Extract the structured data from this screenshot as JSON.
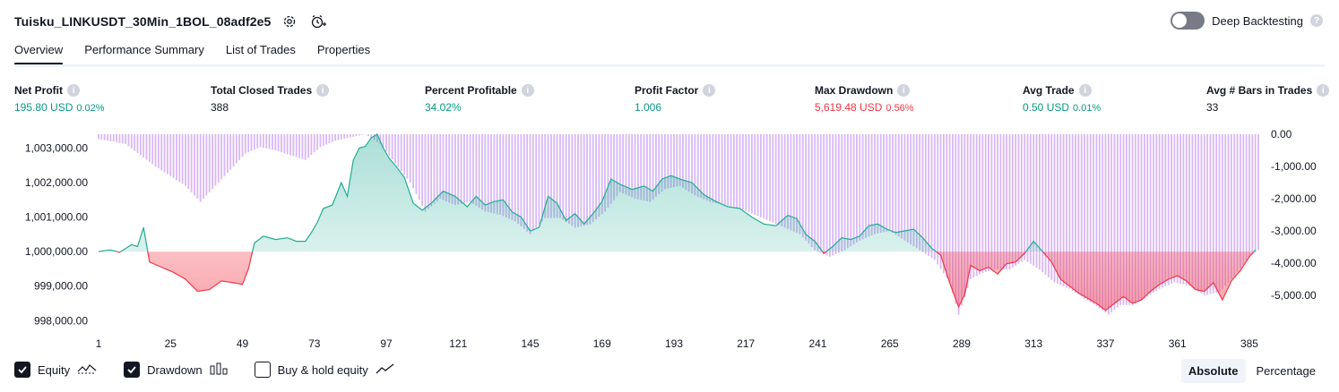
{
  "header": {
    "title": "Tuisku_LINKUSDT_30Min_1BOL_08adf2e5",
    "deep_backtesting_label": "Deep Backtesting",
    "deep_backtesting_enabled": false
  },
  "tabs": [
    {
      "label": "Overview",
      "active": true
    },
    {
      "label": "Performance Summary",
      "active": false
    },
    {
      "label": "List of Trades",
      "active": false
    },
    {
      "label": "Properties",
      "active": false
    }
  ],
  "metrics": [
    {
      "label": "Net Profit",
      "value": "195.80 USD",
      "pct": "0.02%",
      "color": "green"
    },
    {
      "label": "Total Closed Trades",
      "value": "388",
      "pct": "",
      "color": "dark"
    },
    {
      "label": "Percent Profitable",
      "value": "34.02%",
      "pct": "",
      "color": "green"
    },
    {
      "label": "Profit Factor",
      "value": "1.006",
      "pct": "",
      "color": "green"
    },
    {
      "label": "Max Drawdown",
      "value": "5,619.48 USD",
      "pct": "0.56%",
      "color": "red"
    },
    {
      "label": "Avg Trade",
      "value": "0.50 USD",
      "pct": "0.01%",
      "color": "green"
    },
    {
      "label": "Avg # Bars in Trades",
      "value": "33",
      "pct": "",
      "color": "dark"
    }
  ],
  "colors": {
    "profit": "#089981",
    "loss": "#f23645",
    "equity_line_up": "#22ab94",
    "equity_line_down": "#f23645",
    "drawdown_bars": "#d9b8f5",
    "text": "#131722"
  },
  "chart_data": {
    "type": "area",
    "baseline": 1000000,
    "x_ticks": [
      "1",
      "25",
      "49",
      "73",
      "97",
      "121",
      "145",
      "169",
      "193",
      "217",
      "241",
      "265",
      "289",
      "313",
      "337",
      "361",
      "385"
    ],
    "xlim": [
      1,
      388
    ],
    "left_axis": {
      "ticks": [
        "1,003,000.00",
        "1,002,000.00",
        "1,001,000.00",
        "1,000,000.00",
        "999,000.00",
        "998,000.00"
      ],
      "ylim": [
        997800,
        1003400
      ]
    },
    "right_axis": {
      "ticks": [
        "0.00",
        "-1,000.00",
        "-2,000.00",
        "-3,000.00",
        "-4,000.00",
        "-5,000.00"
      ],
      "ylim": [
        -6000,
        0
      ]
    },
    "series": [
      {
        "name": "Equity",
        "points": [
          [
            1,
            1000000
          ],
          [
            5,
            1000050
          ],
          [
            8,
            999980
          ],
          [
            12,
            1000200
          ],
          [
            14,
            1000150
          ],
          [
            16,
            1000700
          ],
          [
            18,
            999700
          ],
          [
            22,
            999550
          ],
          [
            26,
            999400
          ],
          [
            30,
            999200
          ],
          [
            34,
            998850
          ],
          [
            38,
            998900
          ],
          [
            42,
            999150
          ],
          [
            46,
            999100
          ],
          [
            49,
            999050
          ],
          [
            51,
            999500
          ],
          [
            53,
            1000250
          ],
          [
            56,
            1000450
          ],
          [
            60,
            1000350
          ],
          [
            64,
            1000400
          ],
          [
            67,
            1000300
          ],
          [
            70,
            1000300
          ],
          [
            72,
            1000550
          ],
          [
            74,
            1000850
          ],
          [
            76,
            1001250
          ],
          [
            79,
            1001350
          ],
          [
            82,
            1002000
          ],
          [
            84,
            1001600
          ],
          [
            86,
            1002650
          ],
          [
            88,
            1003000
          ],
          [
            90,
            1003050
          ],
          [
            92,
            1003300
          ],
          [
            94,
            1003400
          ],
          [
            96,
            1003000
          ],
          [
            98,
            1002700
          ],
          [
            100,
            1002500
          ],
          [
            103,
            1002150
          ],
          [
            106,
            1001400
          ],
          [
            109,
            1001200
          ],
          [
            112,
            1001400
          ],
          [
            116,
            1001750
          ],
          [
            120,
            1001600
          ],
          [
            124,
            1001300
          ],
          [
            127,
            1001600
          ],
          [
            130,
            1001350
          ],
          [
            133,
            1001450
          ],
          [
            136,
            1001500
          ],
          [
            139,
            1001150
          ],
          [
            142,
            1001000
          ],
          [
            145,
            1000600
          ],
          [
            148,
            1000700
          ],
          [
            151,
            1001600
          ],
          [
            154,
            1001400
          ],
          [
            157,
            1000900
          ],
          [
            160,
            1001100
          ],
          [
            163,
            1000800
          ],
          [
            166,
            1001100
          ],
          [
            169,
            1001450
          ],
          [
            172,
            1002100
          ],
          [
            175,
            1001950
          ],
          [
            179,
            1001800
          ],
          [
            183,
            1001900
          ],
          [
            186,
            1001750
          ],
          [
            189,
            1002100
          ],
          [
            192,
            1002200
          ],
          [
            195,
            1002100
          ],
          [
            199,
            1002000
          ],
          [
            203,
            1001650
          ],
          [
            207,
            1001450
          ],
          [
            211,
            1001300
          ],
          [
            215,
            1001250
          ],
          [
            219,
            1001000
          ],
          [
            223,
            1000800
          ],
          [
            227,
            1000750
          ],
          [
            231,
            1001050
          ],
          [
            234,
            1000950
          ],
          [
            237,
            1000500
          ],
          [
            240,
            1000300
          ],
          [
            243,
            999950
          ],
          [
            246,
            1000150
          ],
          [
            249,
            1000400
          ],
          [
            252,
            1000350
          ],
          [
            255,
            1000450
          ],
          [
            258,
            1000750
          ],
          [
            261,
            1000800
          ],
          [
            264,
            1000650
          ],
          [
            267,
            1000550
          ],
          [
            270,
            1000600
          ],
          [
            273,
            1000650
          ],
          [
            276,
            1000400
          ],
          [
            279,
            1000100
          ],
          [
            282,
            999900
          ],
          [
            285,
            999100
          ],
          [
            288,
            998400
          ],
          [
            290,
            998750
          ],
          [
            292,
            999600
          ],
          [
            295,
            999450
          ],
          [
            298,
            999550
          ],
          [
            301,
            999350
          ],
          [
            304,
            999650
          ],
          [
            307,
            999700
          ],
          [
            310,
            999950
          ],
          [
            313,
            1000300
          ],
          [
            316,
            1000000
          ],
          [
            319,
            999700
          ],
          [
            322,
            999200
          ],
          [
            325,
            999000
          ],
          [
            328,
            998800
          ],
          [
            331,
            998650
          ],
          [
            334,
            998500
          ],
          [
            337,
            998300
          ],
          [
            340,
            998500
          ],
          [
            343,
            998700
          ],
          [
            346,
            998500
          ],
          [
            349,
            998600
          ],
          [
            352,
            998850
          ],
          [
            355,
            999050
          ],
          [
            358,
            999200
          ],
          [
            361,
            999300
          ],
          [
            364,
            999150
          ],
          [
            367,
            998900
          ],
          [
            370,
            998850
          ],
          [
            373,
            999100
          ],
          [
            376,
            998600
          ],
          [
            379,
            999150
          ],
          [
            382,
            999450
          ],
          [
            385,
            999850
          ],
          [
            387,
            1000050
          ]
        ]
      },
      {
        "name": "Drawdown",
        "points": [
          [
            1,
            -150
          ],
          [
            10,
            -300
          ],
          [
            20,
            -1000
          ],
          [
            25,
            -1300
          ],
          [
            30,
            -1600
          ],
          [
            35,
            -2100
          ],
          [
            40,
            -1600
          ],
          [
            45,
            -1100
          ],
          [
            50,
            -600
          ],
          [
            55,
            -400
          ],
          [
            60,
            -500
          ],
          [
            65,
            -650
          ],
          [
            70,
            -800
          ],
          [
            75,
            -400
          ],
          [
            80,
            -200
          ],
          [
            85,
            -100
          ],
          [
            90,
            0
          ],
          [
            95,
            -300
          ],
          [
            100,
            -900
          ],
          [
            105,
            -1500
          ],
          [
            110,
            -2400
          ],
          [
            115,
            -2000
          ],
          [
            120,
            -2200
          ],
          [
            125,
            -2100
          ],
          [
            130,
            -2400
          ],
          [
            135,
            -2500
          ],
          [
            140,
            -2700
          ],
          [
            145,
            -3100
          ],
          [
            150,
            -2600
          ],
          [
            155,
            -2600
          ],
          [
            160,
            -2900
          ],
          [
            165,
            -2800
          ],
          [
            170,
            -2400
          ],
          [
            175,
            -1800
          ],
          [
            180,
            -2000
          ],
          [
            185,
            -2100
          ],
          [
            190,
            -1700
          ],
          [
            195,
            -1600
          ],
          [
            200,
            -1900
          ],
          [
            205,
            -2100
          ],
          [
            210,
            -2200
          ],
          [
            215,
            -2300
          ],
          [
            220,
            -2500
          ],
          [
            225,
            -2700
          ],
          [
            230,
            -2900
          ],
          [
            235,
            -3100
          ],
          [
            240,
            -3600
          ],
          [
            245,
            -3800
          ],
          [
            250,
            -3600
          ],
          [
            255,
            -3300
          ],
          [
            260,
            -3100
          ],
          [
            265,
            -3000
          ],
          [
            270,
            -3300
          ],
          [
            275,
            -3600
          ],
          [
            280,
            -3900
          ],
          [
            285,
            -4600
          ],
          [
            288,
            -5600
          ],
          [
            292,
            -4500
          ],
          [
            296,
            -4300
          ],
          [
            300,
            -4200
          ],
          [
            305,
            -4200
          ],
          [
            310,
            -3900
          ],
          [
            315,
            -4200
          ],
          [
            320,
            -4600
          ],
          [
            325,
            -4800
          ],
          [
            330,
            -5100
          ],
          [
            335,
            -5400
          ],
          [
            338,
            -5600
          ],
          [
            342,
            -5300
          ],
          [
            346,
            -5300
          ],
          [
            350,
            -5100
          ],
          [
            355,
            -4800
          ],
          [
            360,
            -4600
          ],
          [
            365,
            -4700
          ],
          [
            370,
            -5000
          ],
          [
            375,
            -4900
          ],
          [
            380,
            -4400
          ],
          [
            385,
            -3800
          ],
          [
            388,
            -3600
          ]
        ]
      }
    ],
    "legend": [
      {
        "label": "Equity",
        "checked": true,
        "icon": "equity-line-icon"
      },
      {
        "label": "Drawdown",
        "checked": true,
        "icon": "drawdown-bars-icon"
      },
      {
        "label": "Buy & hold equity",
        "checked": false,
        "icon": "buy-hold-line-icon"
      }
    ],
    "grid": false
  },
  "view_mode": {
    "options": [
      "Absolute",
      "Percentage"
    ],
    "selected": "Absolute"
  }
}
